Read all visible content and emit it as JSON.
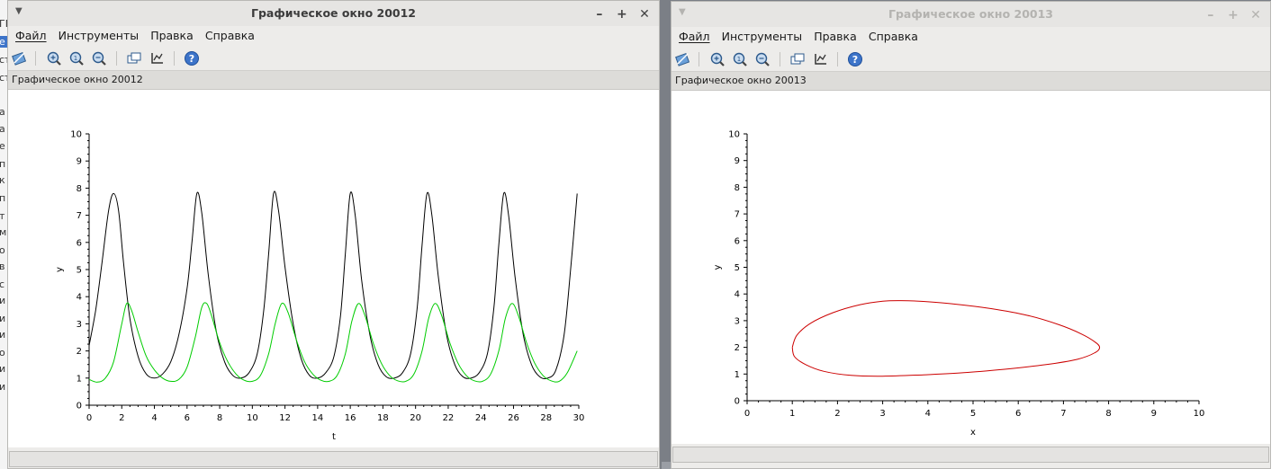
{
  "windows": [
    {
      "title": "Графическое окно 20012",
      "menu": [
        "Файл",
        "Инструменты",
        "Правка",
        "Справка"
      ],
      "subtitle": "Графическое окно 20012"
    },
    {
      "title": "Графическое окно 20013",
      "menu": [
        "Файл",
        "Инструменты",
        "Правка",
        "Справка"
      ],
      "subtitle": "Графическое окно 20013"
    }
  ],
  "toolbar_icons": [
    "rotate-icon",
    "zoom-in-icon",
    "zoom-original-icon",
    "zoom-out-icon",
    "datatip-icon",
    "edit-axes-icon",
    "help-icon"
  ],
  "window_controls": [
    "menu-arrow-icon",
    "minimize-icon",
    "maximize-icon",
    "close-icon"
  ],
  "chart_data": [
    {
      "type": "line",
      "xlabel": "t",
      "ylabel": "y",
      "xlim": [
        0,
        30
      ],
      "ylim": [
        0,
        10
      ],
      "xticks": [
        0,
        2,
        4,
        6,
        8,
        10,
        12,
        14,
        16,
        18,
        20,
        22,
        24,
        26,
        28,
        30
      ],
      "yticks": [
        0,
        1,
        2,
        3,
        4,
        5,
        6,
        7,
        8,
        9,
        10
      ],
      "grid": false,
      "series": [
        {
          "color": "#000000",
          "x": [
            0,
            0.4,
            0.8,
            1.2,
            1.5,
            1.8,
            2.1,
            2.5,
            3.0,
            3.5,
            4.0,
            4.5,
            5.0,
            5.5,
            6.0,
            6.3,
            6.6,
            6.9,
            7.3,
            7.8,
            8.3,
            8.8,
            9.3,
            9.8,
            10.3,
            10.7,
            11.0,
            11.3,
            11.6,
            12.0,
            12.5,
            13.0,
            13.5,
            14.0,
            14.5,
            15.0,
            15.4,
            15.7,
            16.0,
            16.3,
            16.7,
            17.2,
            17.7,
            18.2,
            18.7,
            19.2,
            19.7,
            20.1,
            20.4,
            20.7,
            21.0,
            21.4,
            21.9,
            22.4,
            22.9,
            23.4,
            23.9,
            24.4,
            24.8,
            25.1,
            25.4,
            25.7,
            26.1,
            26.6,
            27.1,
            27.6,
            28.1,
            28.6,
            29.1,
            29.5,
            29.9
          ],
          "y": [
            2.2,
            3.5,
            5.3,
            7.2,
            7.8,
            7.2,
            5.3,
            3.2,
            1.8,
            1.15,
            1.0,
            1.15,
            1.6,
            2.6,
            4.3,
            6.0,
            7.8,
            7.1,
            4.8,
            2.7,
            1.6,
            1.1,
            1.0,
            1.2,
            1.9,
            3.5,
            5.6,
            7.8,
            7.2,
            5.1,
            3.0,
            1.7,
            1.1,
            1.0,
            1.2,
            1.8,
            3.3,
            5.6,
            7.8,
            7.0,
            4.6,
            2.6,
            1.5,
            1.05,
            1.0,
            1.2,
            1.9,
            3.6,
            5.9,
            7.8,
            7.0,
            4.7,
            2.6,
            1.5,
            1.05,
            1.0,
            1.2,
            1.9,
            3.6,
            5.9,
            7.8,
            7.0,
            4.7,
            2.6,
            1.5,
            1.05,
            1.0,
            1.3,
            2.6,
            5.0,
            7.8
          ]
        },
        {
          "color": "#00cc00",
          "x": [
            0,
            0.5,
            1.0,
            1.5,
            2.0,
            2.3,
            2.6,
            3.0,
            3.5,
            4.0,
            4.5,
            5.0,
            5.5,
            6.0,
            6.5,
            6.9,
            7.2,
            7.5,
            8.0,
            8.5,
            9.0,
            9.5,
            10.0,
            10.5,
            11.0,
            11.4,
            11.8,
            12.2,
            12.7,
            13.2,
            13.7,
            14.2,
            14.7,
            15.2,
            15.7,
            16.1,
            16.5,
            16.9,
            17.4,
            17.9,
            18.4,
            18.9,
            19.4,
            19.9,
            20.4,
            20.8,
            21.2,
            21.6,
            22.1,
            22.6,
            23.1,
            23.6,
            24.1,
            24.6,
            25.1,
            25.5,
            25.9,
            26.3,
            26.8,
            27.3,
            27.8,
            28.3,
            28.8,
            29.3,
            29.9
          ],
          "y": [
            0.95,
            0.85,
            1.0,
            1.6,
            3.0,
            3.75,
            3.5,
            2.7,
            1.8,
            1.3,
            1.0,
            0.88,
            0.95,
            1.4,
            2.5,
            3.6,
            3.75,
            3.3,
            2.3,
            1.6,
            1.15,
            0.92,
            0.88,
            1.1,
            1.9,
            3.0,
            3.75,
            3.4,
            2.4,
            1.6,
            1.15,
            0.92,
            0.88,
            1.1,
            1.9,
            3.1,
            3.75,
            3.3,
            2.3,
            1.55,
            1.1,
            0.9,
            0.88,
            1.15,
            2.0,
            3.2,
            3.75,
            3.3,
            2.3,
            1.55,
            1.1,
            0.9,
            0.88,
            1.15,
            2.0,
            3.2,
            3.75,
            3.3,
            2.3,
            1.55,
            1.1,
            0.9,
            0.88,
            1.2,
            2.0
          ]
        }
      ]
    },
    {
      "type": "line",
      "xlabel": "x",
      "ylabel": "y",
      "xlim": [
        0,
        10
      ],
      "ylim": [
        0,
        10
      ],
      "xticks": [
        0,
        1,
        2,
        3,
        4,
        5,
        6,
        7,
        8,
        9,
        10
      ],
      "yticks": [
        0,
        1,
        2,
        3,
        4,
        5,
        6,
        7,
        8,
        9,
        10
      ],
      "grid": false,
      "series": [
        {
          "color": "#cc0000",
          "x": [
            1.0,
            1.1,
            1.4,
            1.9,
            2.5,
            3.0,
            3.4,
            3.9,
            4.6,
            5.4,
            6.2,
            6.9,
            7.4,
            7.7,
            7.8,
            7.7,
            7.3,
            6.6,
            5.7,
            4.8,
            3.9,
            3.0,
            2.3,
            1.7,
            1.3,
            1.05,
            1.0
          ],
          "y": [
            2.0,
            2.45,
            2.9,
            3.3,
            3.6,
            3.73,
            3.75,
            3.72,
            3.62,
            3.45,
            3.2,
            2.85,
            2.5,
            2.2,
            2.0,
            1.8,
            1.55,
            1.35,
            1.18,
            1.05,
            0.97,
            0.92,
            0.95,
            1.1,
            1.35,
            1.65,
            2.0
          ]
        }
      ]
    }
  ]
}
